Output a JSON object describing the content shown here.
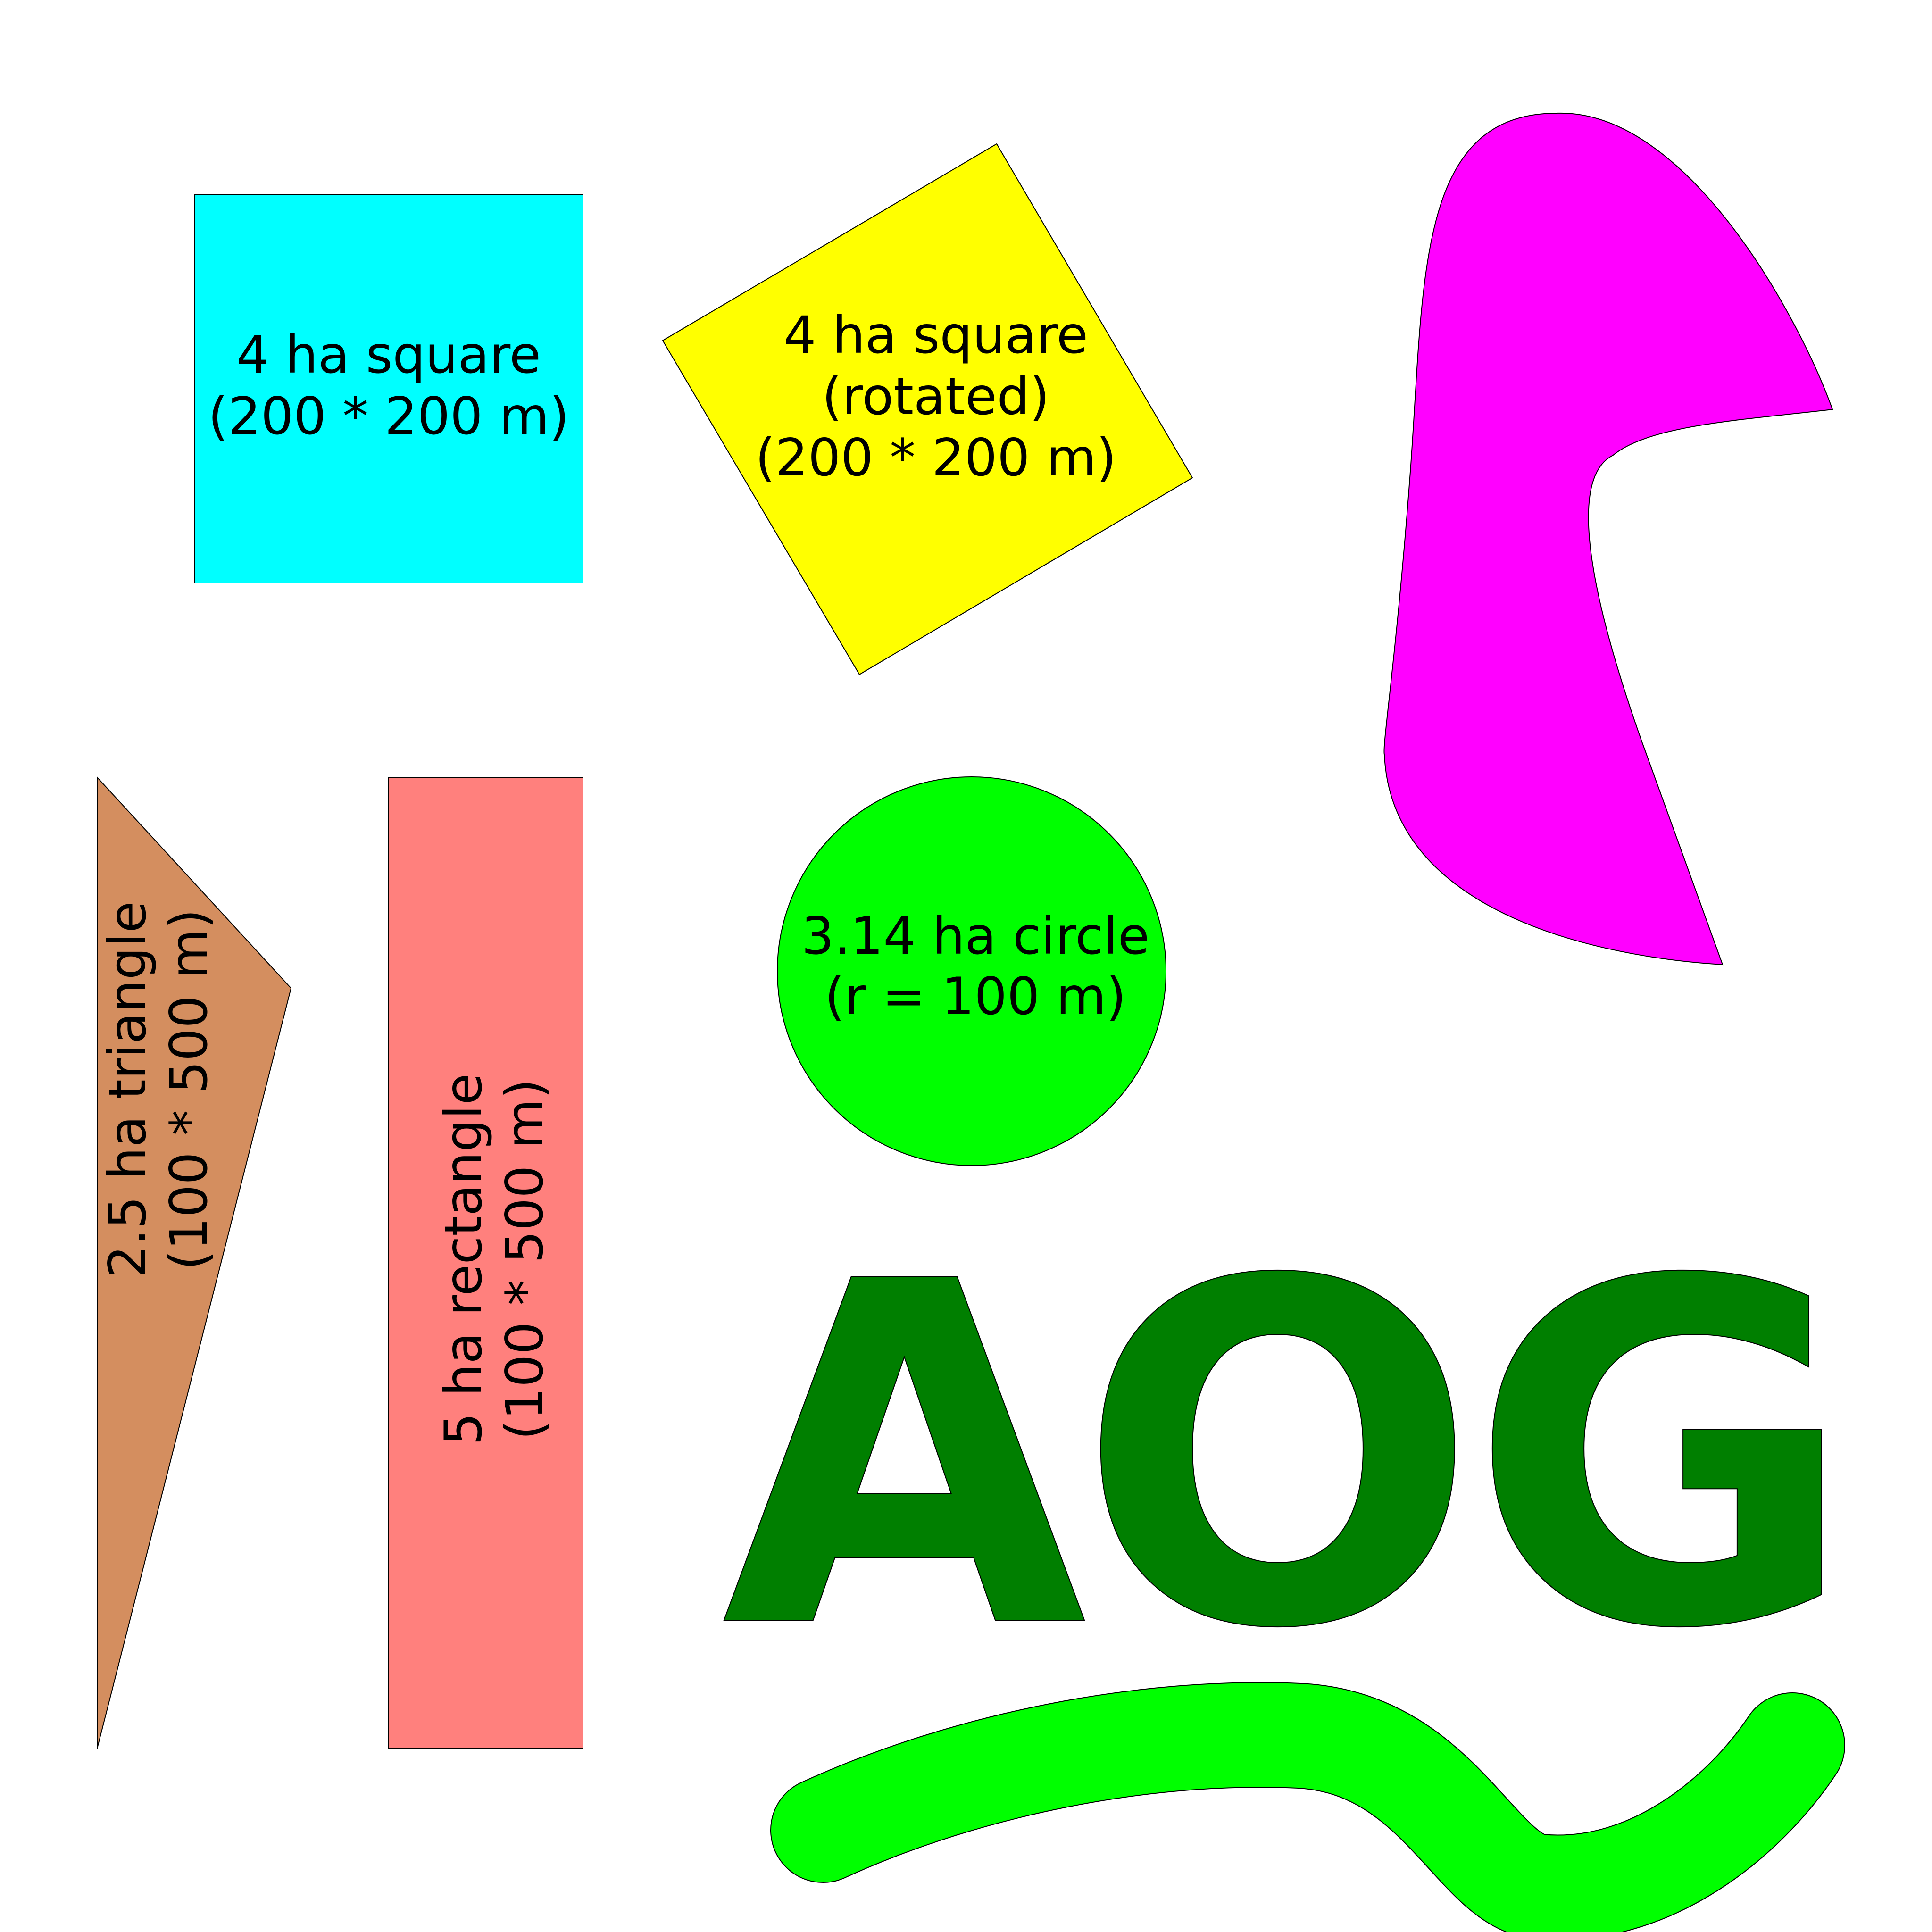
{
  "shapes": {
    "square": {
      "line1": "4 ha square",
      "line2": "(200 * 200 m)",
      "color": "#00FFFF"
    },
    "rotated_square": {
      "line1": "4 ha square",
      "line2": "(rotated)",
      "line3": "(200 * 200 m)",
      "color": "#FFFF00"
    },
    "triangle": {
      "line1": "2.5 ha triangle",
      "line2": "(100 * 500 m)",
      "color": "#D48E5F"
    },
    "rectangle": {
      "line1": "5 ha rectangle",
      "line2": "(100 * 500 m)",
      "color": "#FF807D"
    },
    "circle": {
      "line1": "3.14 ha circle",
      "line2": "(r = 100 m)",
      "color": "#00FF00"
    },
    "blob": {
      "color": "#FF00FF"
    },
    "wave": {
      "color": "#00FF00"
    }
  },
  "logo": {
    "text": "AOG",
    "color": "#007F00"
  },
  "stroke_color": "#000000"
}
